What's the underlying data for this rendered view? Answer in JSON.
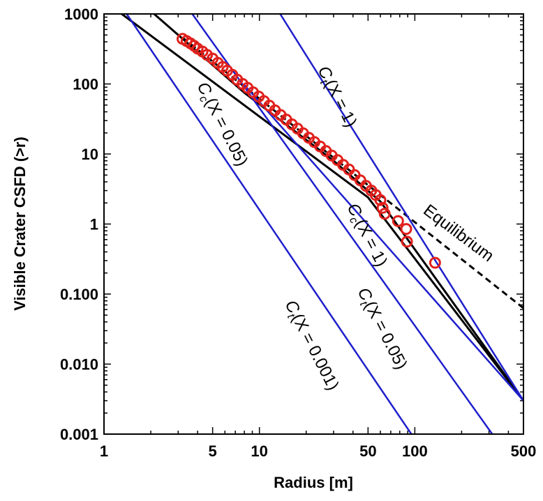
{
  "chart_data": {
    "type": "scatter",
    "xlabel": "Radius [m]",
    "ylabel": "Visible Crater CSFD (>r)",
    "xscale": "log",
    "yscale": "log",
    "xlim": [
      1,
      500
    ],
    "ylim": [
      0.001,
      1000
    ],
    "x_ticks": [
      {
        "v": 1,
        "label": "1"
      },
      {
        "v": 5,
        "label": "5"
      },
      {
        "v": 10,
        "label": "10"
      },
      {
        "v": 50,
        "label": "50"
      },
      {
        "v": 100,
        "label": "100"
      },
      {
        "v": 500,
        "label": "500"
      }
    ],
    "y_ticks": [
      {
        "v": 1000,
        "label": "1000"
      },
      {
        "v": 100,
        "label": "100"
      },
      {
        "v": 10,
        "label": "10"
      },
      {
        "v": 1,
        "label": "1"
      },
      {
        "v": 0.1,
        "label": "0.100"
      },
      {
        "v": 0.01,
        "label": "0.010"
      },
      {
        "v": 0.001,
        "label": "0.001"
      }
    ],
    "colors": {
      "data": "#e0201c",
      "blue_lines": "#1f1fcc",
      "black_lines": "#000000"
    },
    "observed": {
      "marker": "open-circle",
      "color": "#e0201c",
      "points": [
        [
          3.2,
          440
        ],
        [
          3.4,
          410
        ],
        [
          3.6,
          380
        ],
        [
          3.8,
          350
        ],
        [
          4.0,
          320
        ],
        [
          4.3,
          290
        ],
        [
          4.6,
          260
        ],
        [
          5.0,
          230
        ],
        [
          5.4,
          200
        ],
        [
          5.8,
          175
        ],
        [
          6.2,
          155
        ],
        [
          6.7,
          135
        ],
        [
          7.2,
          115
        ],
        [
          7.8,
          100
        ],
        [
          8.4,
          88
        ],
        [
          9.1,
          76
        ],
        [
          9.9,
          66
        ],
        [
          10.7,
          57
        ],
        [
          11.6,
          49
        ],
        [
          12.6,
          42
        ],
        [
          13.7,
          36
        ],
        [
          14.9,
          31
        ],
        [
          16.2,
          26.5
        ],
        [
          17.6,
          23
        ],
        [
          19.1,
          19.8
        ],
        [
          20.8,
          17
        ],
        [
          22.6,
          14.8
        ],
        [
          24.6,
          12.8
        ],
        [
          26.8,
          11
        ],
        [
          29.2,
          9.5
        ],
        [
          31.8,
          8.2
        ],
        [
          34.6,
          7
        ],
        [
          37.7,
          6
        ],
        [
          41,
          5
        ],
        [
          44.6,
          4.2
        ],
        [
          48.5,
          3.5
        ],
        [
          52.5,
          3
        ],
        [
          56,
          2.6
        ],
        [
          60,
          2.2
        ],
        [
          62,
          1.7
        ],
        [
          64,
          1.4
        ],
        [
          78,
          1.1
        ],
        [
          88,
          0.85
        ],
        [
          89,
          0.56
        ],
        [
          135,
          0.28
        ]
      ]
    },
    "lines": [
      {
        "name": "Equilibrium",
        "color": "#000000",
        "dash": "dashed",
        "points": [
          [
            3.2,
            460
          ],
          [
            60,
            2.6
          ],
          [
            500,
            0.063
          ]
        ]
      },
      {
        "name": "Cc(X=0.05)",
        "color": "#000000",
        "dash": "solid",
        "points": [
          [
            1.3,
            1000
          ],
          [
            50,
            2.4
          ],
          [
            500,
            0.003
          ]
        ]
      },
      {
        "name": "Cc(X=1)",
        "color": "#000000",
        "dash": "solid",
        "points": [
          [
            2.1,
            1000
          ],
          [
            8,
            75
          ],
          [
            30,
            8
          ],
          [
            60,
            2.1
          ],
          [
            500,
            0.003
          ]
        ]
      },
      {
        "name": "Ct(X=1)",
        "color": "#1f1fcc",
        "dash": "solid",
        "points": [
          [
            13.6,
            1000
          ],
          [
            500,
            0.003
          ]
        ]
      },
      {
        "name": "Ct(X=0.05)",
        "color": "#1f1fcc",
        "dash": "solid",
        "points": [
          [
            3.7,
            1000
          ],
          [
            315,
            0.001
          ]
        ]
      },
      {
        "name": "Ct(X=0.001)",
        "color": "#1f1fcc",
        "dash": "solid",
        "points": [
          [
            1.4,
            1000
          ],
          [
            95,
            0.001
          ]
        ]
      },
      {
        "name": "Cc(X=0.05) blue",
        "color": "#1f1fcc",
        "dash": "solid",
        "points": [
          [
            7.9,
            100
          ],
          [
            500,
            0.003
          ]
        ]
      }
    ],
    "labels": {
      "ct_x1": {
        "main": "C",
        "sub": "t",
        "tail": "(X = 1)"
      },
      "cc_x005": {
        "main": "C",
        "sub": "c",
        "tail": "(X = 0.05)"
      },
      "equilibrium": "Equilibrium",
      "cc_x1": {
        "main": "C",
        "sub": "c",
        "tail": "(X = 1)"
      },
      "ct_x005": {
        "main": "C",
        "sub": "t",
        "tail": "(X = 0.05)"
      },
      "ct_x0001": {
        "main": "C",
        "sub": "t",
        "tail": "(X = 0.001)"
      }
    }
  }
}
